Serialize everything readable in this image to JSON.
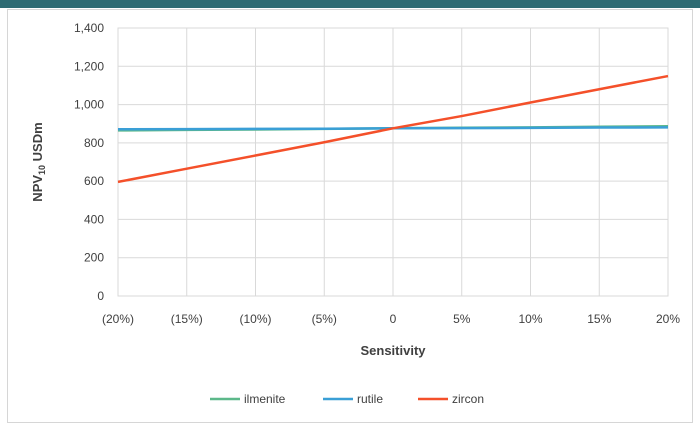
{
  "chart_data": {
    "type": "line",
    "title": "",
    "xlabel": "Sensitivity",
    "ylabel": "NPV10 USDm",
    "ylabel_parts": {
      "main": "NPV",
      "sub": "10",
      "rest": " USDm"
    },
    "categories": [
      "(20%)",
      "(15%)",
      "(10%)",
      "(5%)",
      "0",
      "5%",
      "10%",
      "15%",
      "20%"
    ],
    "x": [
      -20,
      -15,
      -10,
      -5,
      0,
      5,
      10,
      15,
      20
    ],
    "ylim": [
      0,
      1400
    ],
    "yticks": [
      0,
      200,
      400,
      600,
      800,
      1000,
      1200,
      1400
    ],
    "ytick_labels": [
      "0",
      "200",
      "400",
      "600",
      "800",
      "1,000",
      "1,200",
      "1,400"
    ],
    "grid": true,
    "legend_position": "bottom",
    "series": [
      {
        "name": "ilmenite",
        "color": "#5cb88a",
        "values": [
          865,
          868,
          870,
          873,
          876,
          879,
          881,
          884,
          887
        ]
      },
      {
        "name": "rutile",
        "color": "#3a9fd6",
        "values": [
          871,
          872,
          873,
          874,
          876,
          877,
          878,
          880,
          881
        ]
      },
      {
        "name": "zircon",
        "color": "#f4502a",
        "values": [
          596,
          665,
          734,
          803,
          876,
          940,
          1011,
          1080,
          1149
        ]
      }
    ]
  }
}
